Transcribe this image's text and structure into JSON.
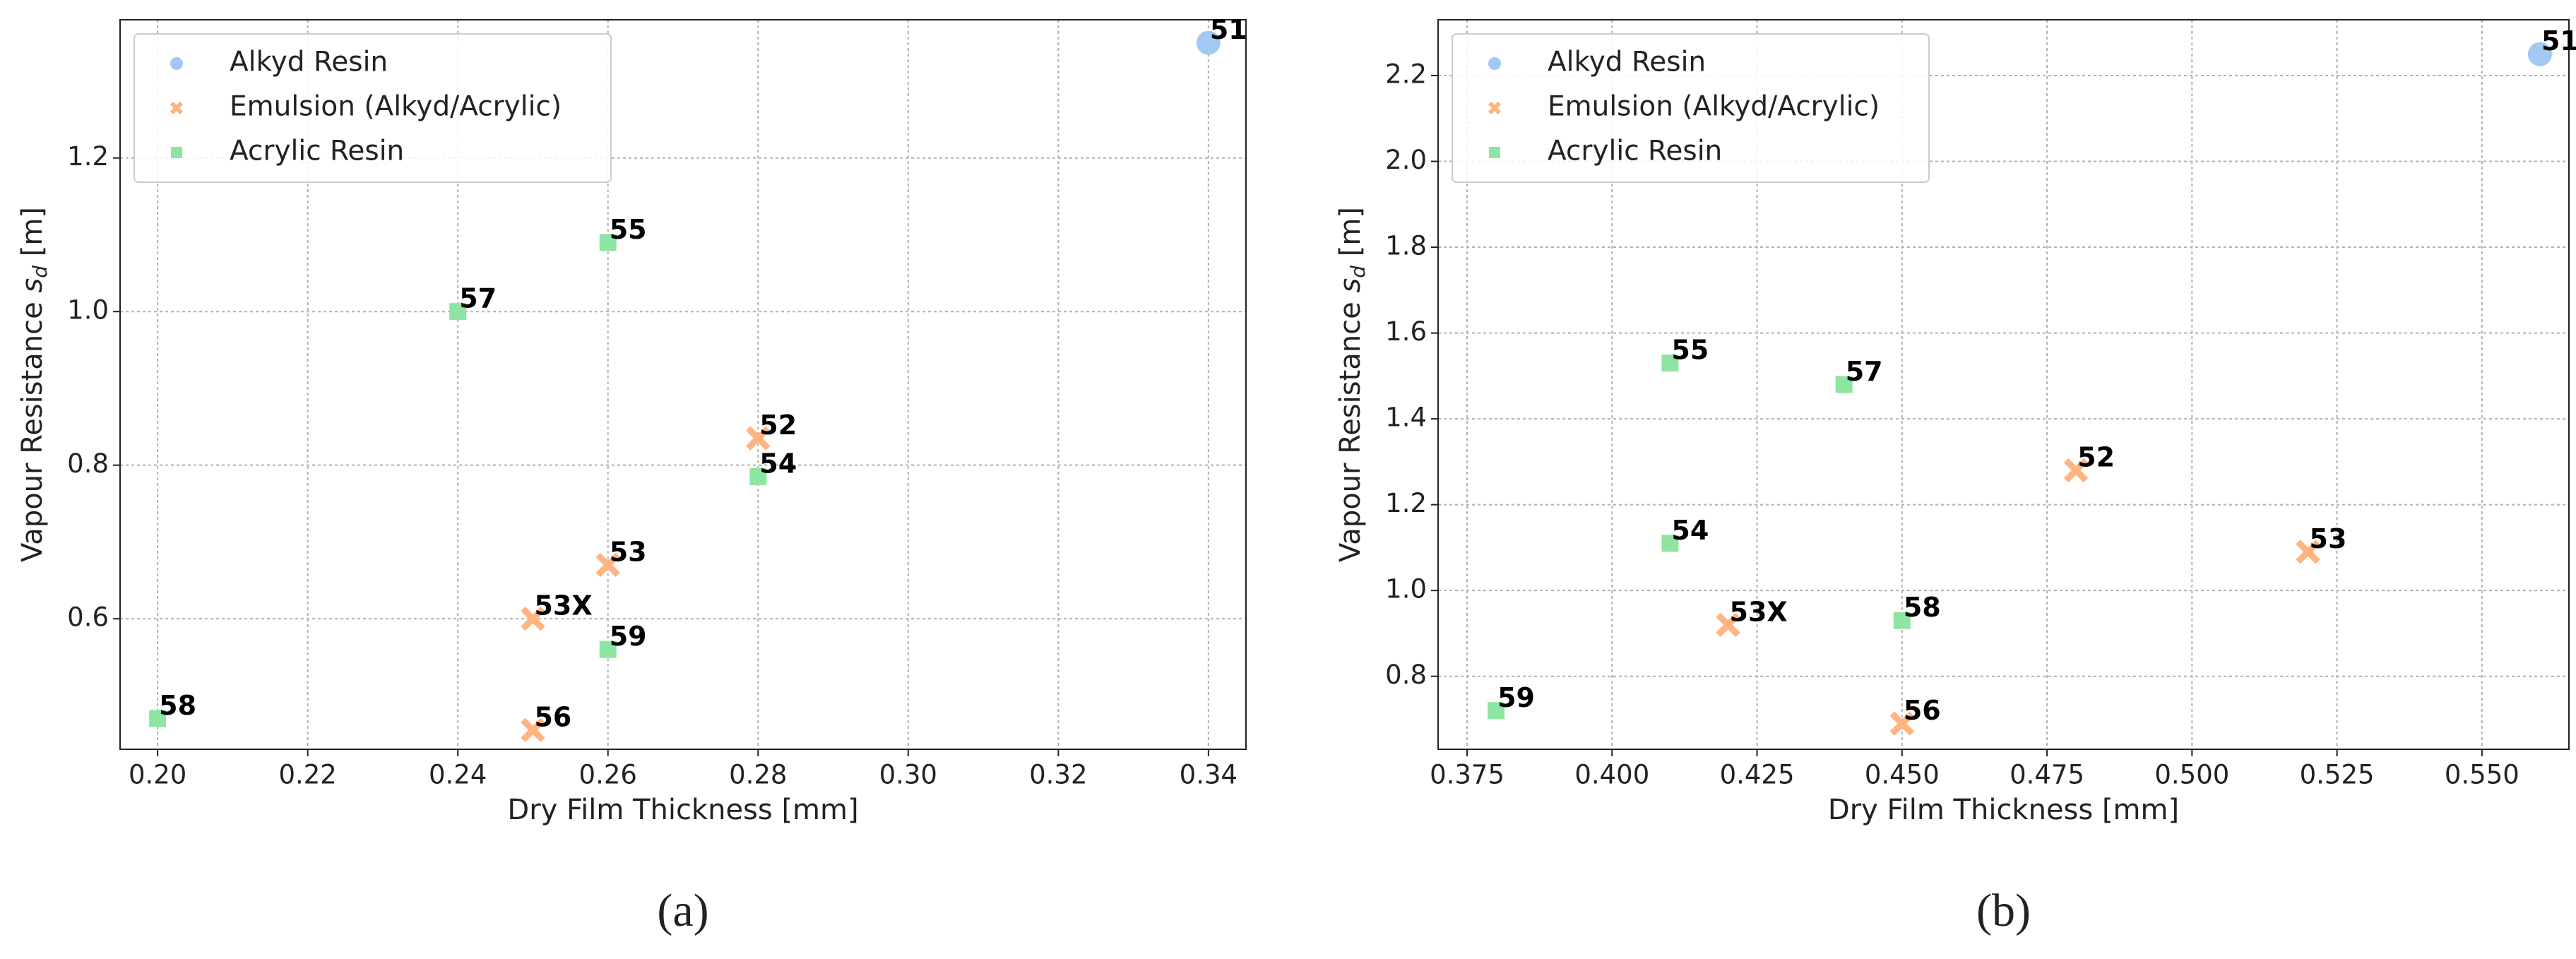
{
  "chart_data": [
    {
      "type": "scatter",
      "caption": "(a)",
      "xlabel": "Dry Film Thickness [mm]",
      "ylabel": "Vapour Resistance ",
      "ylabel_symbol": "s",
      "ylabel_sub": "d",
      "ylabel_unit": " [m]",
      "xlim": [
        0.195,
        0.345
      ],
      "ylim": [
        0.43,
        1.38
      ],
      "xticks": [
        {
          "value": 0.2,
          "label": "0.20"
        },
        0.22,
        0.24,
        0.26,
        0.28,
        {
          "value": 0.3,
          "label": "0.30"
        },
        0.32,
        0.34
      ],
      "yticks": [
        0.6,
        0.8,
        {
          "value": 1.0,
          "label": "1.0"
        },
        1.2
      ],
      "grid": true,
      "legend": "upper left",
      "series": [
        {
          "name": "Alkyd Resin",
          "color": "#a1c9f4",
          "marker": "o",
          "x": [
            0.34
          ],
          "values": [
            1.35
          ],
          "labels": [
            "51"
          ]
        },
        {
          "name": "Emulsion (Alkyd/Acrylic)",
          "color": "#ffb482",
          "marker": "x",
          "x": [
            0.28,
            0.26,
            0.25,
            0.25
          ],
          "values": [
            0.835,
            0.67,
            0.6,
            0.455
          ],
          "labels": [
            "52",
            "53",
            "53X",
            "56"
          ]
        },
        {
          "name": "Acrylic Resin",
          "color": "#8de5a1",
          "marker": "s",
          "x": [
            0.26,
            0.24,
            0.28,
            0.26,
            0.2
          ],
          "values": [
            1.09,
            1.0,
            0.785,
            0.56,
            0.47
          ],
          "labels": [
            "55",
            "57",
            "54",
            "59",
            "58"
          ]
        }
      ]
    },
    {
      "type": "scatter",
      "caption": "(b)",
      "xlabel": "Dry Film Thickness [mm]",
      "ylabel": "Vapour Resistance ",
      "ylabel_symbol": "s",
      "ylabel_sub": "d",
      "ylabel_unit": " [m]",
      "xlim": [
        0.37,
        0.565
      ],
      "ylim": [
        0.63,
        2.33
      ],
      "xticks": [
        0.375,
        {
          "value": 0.4,
          "label": "0.400"
        },
        0.425,
        {
          "value": 0.45,
          "label": "0.450"
        },
        0.475,
        {
          "value": 0.5,
          "label": "0.500"
        },
        0.525,
        {
          "value": 0.55,
          "label": "0.550"
        }
      ],
      "yticks": [
        0.8,
        {
          "value": 1.0,
          "label": "1.0"
        },
        1.2,
        1.4,
        1.6,
        1.8,
        {
          "value": 2.0,
          "label": "2.0"
        },
        2.2
      ],
      "grid": true,
      "legend": "upper left",
      "series": [
        {
          "name": "Alkyd Resin",
          "color": "#a1c9f4",
          "marker": "o",
          "x": [
            0.56
          ],
          "values": [
            2.25
          ],
          "labels": [
            "51"
          ]
        },
        {
          "name": "Emulsion (Alkyd/Acrylic)",
          "color": "#ffb482",
          "marker": "x",
          "x": [
            0.48,
            0.52,
            0.42,
            0.45
          ],
          "values": [
            1.28,
            1.09,
            0.92,
            0.69
          ],
          "labels": [
            "52",
            "53",
            "53X",
            "56"
          ]
        },
        {
          "name": "Acrylic Resin",
          "color": "#8de5a1",
          "marker": "s",
          "x": [
            0.41,
            0.44,
            0.41,
            0.45,
            0.38
          ],
          "values": [
            1.53,
            1.48,
            1.11,
            0.93,
            0.72
          ],
          "labels": [
            "55",
            "57",
            "54",
            "58",
            "59"
          ]
        }
      ]
    }
  ]
}
